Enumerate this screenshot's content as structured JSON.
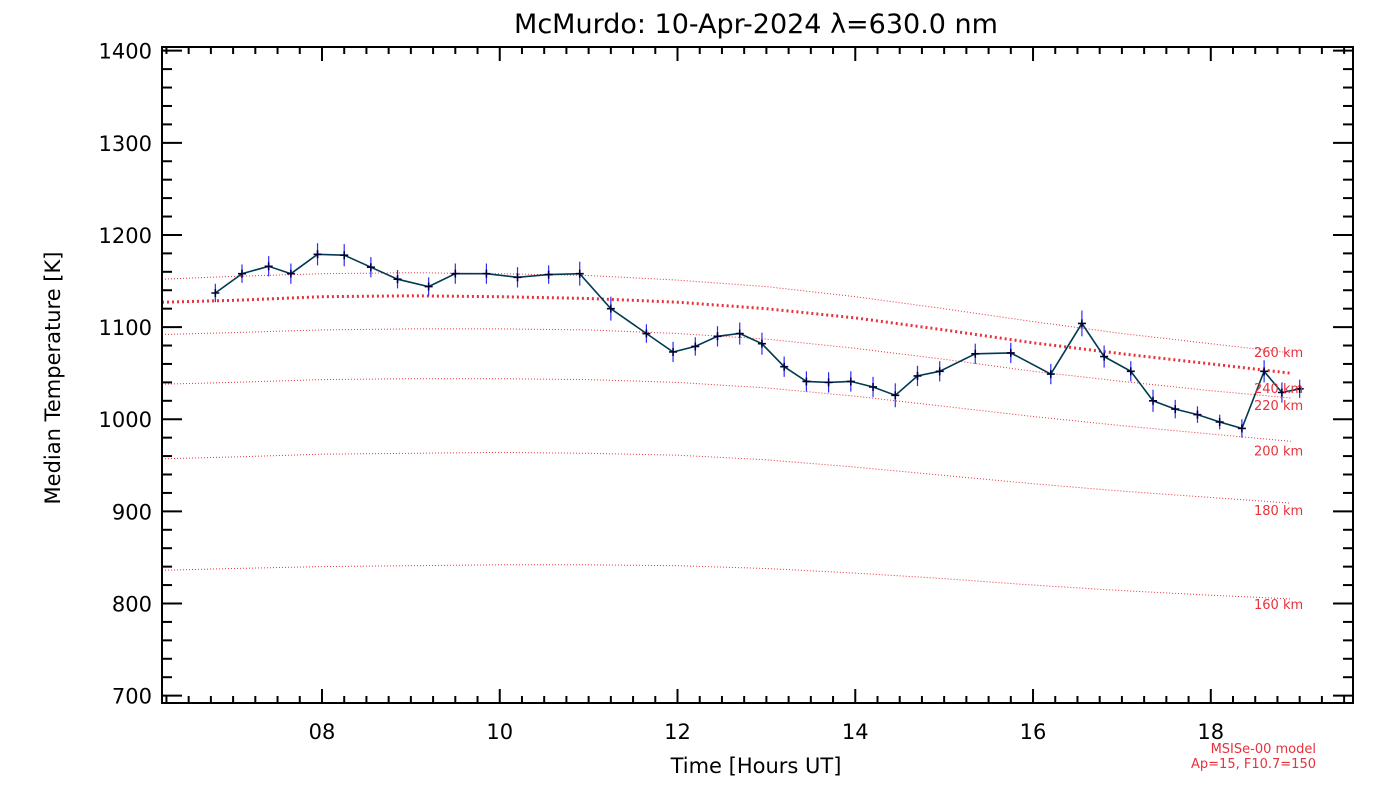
{
  "chart_data": {
    "type": "line",
    "title": "McMurdo: 10-Apr-2024 λ=630.0 nm",
    "xlabel": "Time [Hours UT]",
    "ylabel": "Median Temperature [K]",
    "xlim": [
      6.2,
      19.6
    ],
    "ylim": [
      692,
      1404
    ],
    "x_ticks": [
      8,
      10,
      12,
      14,
      16,
      18
    ],
    "x_tick_labels": [
      "08",
      "10",
      "12",
      "14",
      "16",
      "18"
    ],
    "y_ticks": [
      700,
      800,
      900,
      1000,
      1100,
      1200,
      1300,
      1400
    ],
    "y_tick_labels": [
      "700",
      "800",
      "900",
      "1000",
      "1100",
      "1200",
      "1300",
      "1400"
    ],
    "grid": false,
    "series": [
      {
        "x": [
          6.8,
          7.1,
          7.4,
          7.65,
          7.95,
          8.25,
          8.55,
          8.85,
          9.2,
          9.5,
          9.85,
          10.2,
          10.55,
          10.9,
          11.25,
          11.65,
          11.95,
          12.2,
          12.45,
          12.7,
          12.95,
          13.2,
          13.45,
          13.7,
          13.95,
          14.2,
          14.45,
          14.7,
          14.95,
          15.35,
          15.75,
          16.2,
          16.55,
          16.8,
          17.1,
          17.35,
          17.6,
          17.85,
          18.1,
          18.35,
          18.6,
          18.8,
          19.0
        ],
        "y": [
          1137,
          1158,
          1166,
          1158,
          1179,
          1178,
          1165,
          1152,
          1144,
          1158,
          1158,
          1154,
          1157,
          1158,
          1120,
          1093,
          1073,
          1079,
          1090,
          1093,
          1082,
          1057,
          1041,
          1040,
          1041,
          1035,
          1026,
          1047,
          1052,
          1071,
          1072,
          1049,
          1104,
          1068,
          1052,
          1020,
          1011,
          1005,
          997,
          990,
          1052,
          1029,
          1033
        ],
        "error": [
          10,
          10,
          11,
          11,
          12,
          12,
          11,
          10,
          10,
          11,
          11,
          11,
          10,
          13,
          13,
          10,
          11,
          10,
          11,
          12,
          12,
          11,
          11,
          11,
          11,
          11,
          13,
          11,
          11,
          11,
          11,
          11,
          14,
          12,
          11,
          12,
          10,
          9,
          8,
          10,
          12,
          11,
          10
        ],
        "color": "#003a52",
        "error_color": "#2b2bff",
        "marker_color": "#000040"
      }
    ],
    "model": {
      "name": "MSISe-00 model",
      "params": "Ap=15, F10.7=150",
      "color": "#e8323c",
      "x": [
        6.2,
        7.0,
        8.0,
        9.0,
        10.0,
        11.0,
        12.0,
        13.0,
        14.0,
        15.0,
        16.0,
        17.0,
        18.0,
        18.9
      ],
      "curves": [
        {
          "label": "160 km",
          "y": [
            836,
            838,
            840,
            841,
            842,
            842,
            841,
            838,
            833,
            827,
            820,
            814,
            809,
            805
          ]
        },
        {
          "label": "180 km",
          "y": [
            957,
            959,
            962,
            963,
            964,
            963,
            961,
            956,
            948,
            939,
            930,
            922,
            915,
            909
          ]
        },
        {
          "label": "200 km",
          "y": [
            1038,
            1040,
            1043,
            1044,
            1044,
            1043,
            1040,
            1034,
            1025,
            1014,
            1003,
            993,
            984,
            976
          ]
        },
        {
          "label": "220 km",
          "y": [
            1092,
            1094,
            1097,
            1098,
            1098,
            1097,
            1093,
            1087,
            1077,
            1065,
            1052,
            1041,
            1031,
            1023
          ]
        },
        {
          "label": "240 km",
          "y": [
            1127,
            1129,
            1133,
            1134,
            1133,
            1131,
            1127,
            1120,
            1110,
            1097,
            1083,
            1071,
            1060,
            1050
          ],
          "bold": true
        },
        {
          "label": "260 km",
          "y": [
            1152,
            1155,
            1158,
            1159,
            1158,
            1156,
            1151,
            1144,
            1133,
            1120,
            1106,
            1093,
            1082,
            1072
          ]
        }
      ]
    }
  }
}
